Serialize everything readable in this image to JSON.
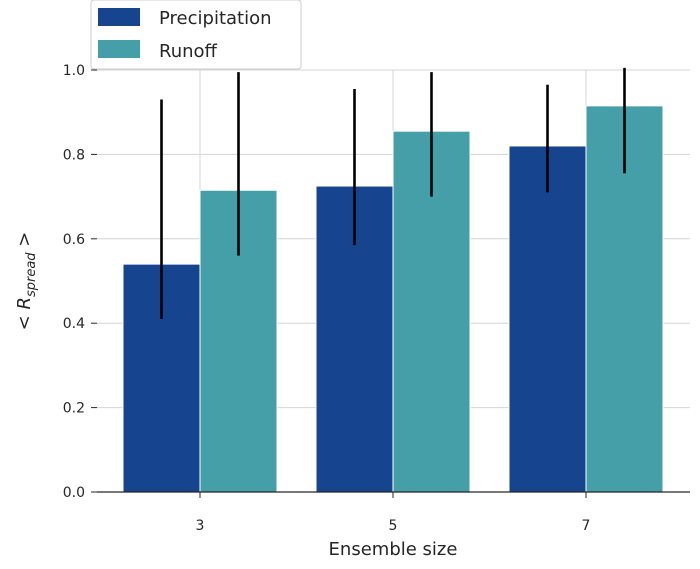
{
  "chart_data": {
    "type": "bar",
    "title": "",
    "xlabel": "Ensemble size",
    "ylabel": "< R_spread >",
    "ylabel_parts": {
      "open": "< ",
      "symbol": "R",
      "subscript": "spread",
      "close": " >"
    },
    "categories": [
      "3",
      "5",
      "7"
    ],
    "ylim": [
      0.0,
      1.0
    ],
    "yticks": [
      "0.0",
      "0.2",
      "0.4",
      "0.6",
      "0.8",
      "1.0"
    ],
    "grid": true,
    "legend_position": "top-left",
    "series": [
      {
        "name": "Precipitation",
        "color": "#17448F",
        "values": [
          0.54,
          0.725,
          0.82
        ],
        "error_low": [
          0.41,
          0.585,
          0.71
        ],
        "error_high": [
          0.93,
          0.955,
          0.965
        ]
      },
      {
        "name": "Runoff",
        "color": "#459FA8",
        "values": [
          0.715,
          0.855,
          0.915
        ],
        "error_low": [
          0.56,
          0.7,
          0.755
        ],
        "error_high": [
          0.995,
          0.995,
          1.005
        ]
      }
    ]
  }
}
